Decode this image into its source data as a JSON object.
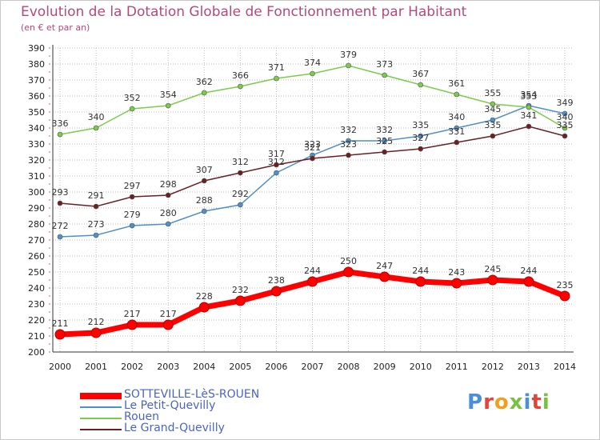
{
  "title": "Evolution de la Dotation Globale de Fonctionnement par Habitant",
  "subtitle": "(en € et par an)",
  "brand": "Proxiti",
  "colors": {
    "title": "#b5487d",
    "legend_text": "#4a63c8",
    "grid": "#bcbcbc",
    "axis": "#333333"
  },
  "chart_data": {
    "type": "line",
    "title": "Evolution de la Dotation Globale de Fonctionnement par Habitant",
    "subtitle": "(en € et par an)",
    "xlabel": "",
    "ylabel": "",
    "x": [
      2000,
      2001,
      2002,
      2003,
      2004,
      2005,
      2006,
      2007,
      2008,
      2009,
      2010,
      2011,
      2012,
      2013,
      2014
    ],
    "ylim": [
      200,
      390
    ],
    "ytick_step": 10,
    "grid": true,
    "legend_position": "bottom-left",
    "series": [
      {
        "name": "SOTTEVILLE-LèS-ROUEN",
        "color": "#ff0000",
        "highlight": true,
        "values": [
          211,
          212,
          217,
          217,
          228,
          232,
          238,
          244,
          250,
          247,
          244,
          243,
          245,
          244,
          235
        ]
      },
      {
        "name": "Le Petit-Quevilly",
        "color": "#4f8fca",
        "values": [
          272,
          273,
          279,
          280,
          288,
          292,
          312,
          323,
          332,
          332,
          335,
          340,
          345,
          354,
          349
        ]
      },
      {
        "name": "Rouen",
        "color": "#7acc4a",
        "values": [
          336,
          340,
          352,
          354,
          362,
          366,
          371,
          374,
          379,
          373,
          367,
          361,
          355,
          353,
          340
        ]
      },
      {
        "name": "Le Grand-Quevilly",
        "color": "#6b1f24",
        "values": [
          293,
          291,
          297,
          298,
          307,
          312,
          317,
          321,
          323,
          325,
          327,
          331,
          335,
          341,
          335
        ]
      }
    ]
  }
}
